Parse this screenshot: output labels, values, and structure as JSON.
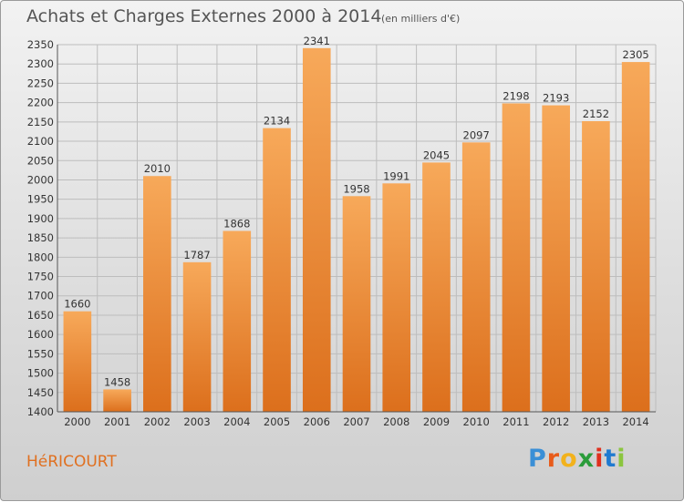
{
  "header": {
    "title": "Achats et Charges Externes 2000 à 2014",
    "subtitle": "(en milliers d'€)"
  },
  "footer": {
    "commune": "HéRICOURT",
    "brand_letters": [
      "P",
      "r",
      "o",
      "x",
      "i",
      "t",
      "i"
    ],
    "brand_colors": [
      "#3a8fd6",
      "#e85b1a",
      "#f2b21c",
      "#2a9c3a",
      "#e0301e",
      "#1f7ad0",
      "#8bc53f"
    ]
  },
  "colors": {
    "bar_light": "#f7a95a",
    "bar_dark": "#dc6f1c",
    "grid": "#bdbdbd",
    "axis_text": "#333333",
    "commune": "#e07020"
  },
  "chart_data": {
    "type": "bar",
    "categories": [
      "2000",
      "2001",
      "2002",
      "2003",
      "2004",
      "2005",
      "2006",
      "2007",
      "2008",
      "2009",
      "2010",
      "2011",
      "2012",
      "2013",
      "2014"
    ],
    "values": [
      1660,
      1458,
      2010,
      1787,
      1868,
      2134,
      2341,
      1958,
      1991,
      2045,
      2097,
      2198,
      2193,
      2152,
      2305
    ],
    "ylim": [
      1400,
      2350
    ],
    "yticks": [
      1400,
      1450,
      1500,
      1550,
      1600,
      1650,
      1700,
      1750,
      1800,
      1850,
      1900,
      1950,
      2000,
      2050,
      2100,
      2150,
      2200,
      2250,
      2300,
      2350
    ],
    "grid": true,
    "legend": "none"
  }
}
